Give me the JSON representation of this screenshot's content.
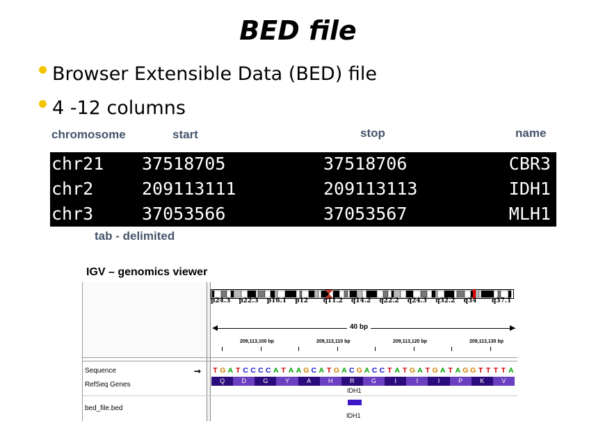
{
  "slide": {
    "title": "BED file",
    "bullets": [
      {
        "text": "Browser Extensible Data (BED) file",
        "dot_color": "#f5c400"
      },
      {
        "text": "4 -12 columns",
        "dot_color": "#f5c400"
      }
    ],
    "column_labels": {
      "chromosome": "chromosome",
      "start": "start",
      "stop": "stop",
      "name": "name"
    },
    "bed_rows": [
      {
        "chrom": "chr21",
        "start": "37518705",
        "stop": "37518706",
        "name": "CBR3"
      },
      {
        "chrom": "chr2",
        "start": "209113111",
        "stop": "209113113",
        "name": "IDH1"
      },
      {
        "chrom": "chr3",
        "start": "37053566",
        "stop": "37053567",
        "name": "MLH1"
      }
    ],
    "tab_note": "tab - delimited",
    "igv_title": "IGV – genomics viewer"
  },
  "igv": {
    "cytobands": [
      "p24.3",
      "p22.3",
      "p16.1",
      "p12",
      "q11.2",
      "q14.2",
      "q22.2",
      "q24.3",
      "q32.2",
      "q34",
      "q37.1"
    ],
    "ruler_span": "40 bp",
    "ruler_ticks": [
      "209,113,100 bp",
      "209,113,110 bp",
      "209,113,120 bp",
      "209,113,130 bp"
    ],
    "tracks": {
      "sequence": "Sequence",
      "refseq": "RefSeq Genes",
      "bed": "bed_file.bed"
    },
    "sequence": "TGATCCCCATAAGCATGACGACCTATGATGATAGGTTTTA",
    "amino_acids": [
      "Q",
      "D",
      "G",
      "Y",
      "A",
      "H",
      "R",
      "G",
      "I",
      "I",
      "I",
      "P",
      "K",
      "V"
    ],
    "gene_name": "IDH1",
    "bed_feature_name": "IDH1",
    "colors": {
      "A": "#00a000",
      "C": "#1010d0",
      "G": "#d08000",
      "T": "#d00000",
      "aa_dark": "#2c0c7c",
      "aa_light": "#6a3fc0",
      "bed_feature": "#3d16c8",
      "ideogram_centromere": "#c0392b",
      "ideogram_highlight": "#e00000"
    }
  }
}
